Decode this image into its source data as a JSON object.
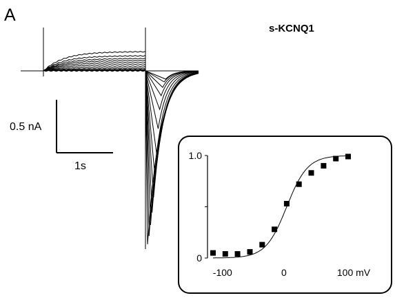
{
  "panel_label": "A",
  "chart_data": [
    {
      "type": "line",
      "name": "current-traces",
      "title": "s-KCNQ1",
      "scale_bar": {
        "current_label": "0.5 nA",
        "time_label": "1s"
      },
      "activation_plateaus": [
        0.14,
        0.11,
        0.09,
        0.075,
        0.06,
        0.045,
        0.03,
        0.018,
        0.01,
        0.005,
        0.002,
        0.0,
        0.0
      ],
      "tail_peaks": [
        -1.26,
        -1.2,
        -1.12,
        -1.03,
        -0.92,
        -0.78,
        -0.6,
        -0.42,
        -0.28,
        -0.18,
        -0.12,
        -0.08,
        -0.06
      ]
    },
    {
      "type": "scatter",
      "name": "activation-curve",
      "x": [
        -120,
        -100,
        -80,
        -60,
        -40,
        -20,
        0,
        20,
        40,
        60,
        80,
        100
      ],
      "y": [
        0.05,
        0.04,
        0.04,
        0.06,
        0.13,
        0.28,
        0.53,
        0.72,
        0.83,
        0.9,
        0.97,
        0.99
      ],
      "fit": {
        "v_half": 0,
        "slope": 17
      },
      "xlim": [
        -120,
        100
      ],
      "ylim": [
        0,
        1.0
      ],
      "x_ticks": [
        "-100",
        "0",
        "100 mV"
      ],
      "y_ticks": [
        "0",
        "1.0"
      ],
      "x_tick_values": [
        -100,
        0,
        100
      ],
      "y_tick_values": [
        0,
        1.0
      ]
    }
  ]
}
